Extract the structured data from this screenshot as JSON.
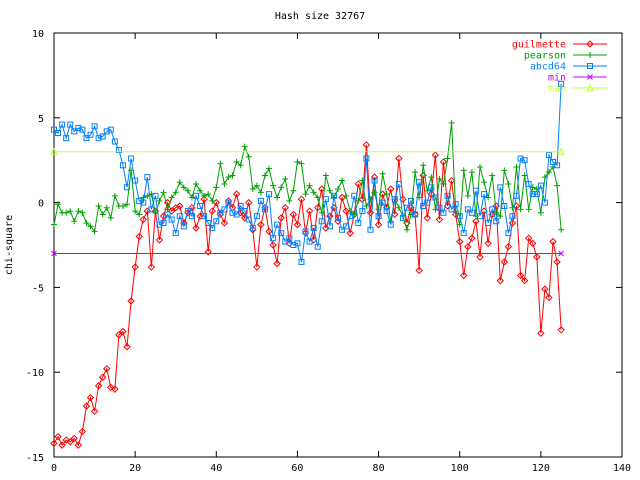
{
  "chart_data": {
    "type": "line",
    "title": "Hash size 32767",
    "xlabel": "",
    "ylabel": "chi-square",
    "xlim": [
      0,
      140
    ],
    "ylim": [
      -15,
      10
    ],
    "x_ticks": [
      0,
      20,
      40,
      60,
      80,
      100,
      120,
      140
    ],
    "y_ticks": [
      -15,
      -10,
      -5,
      0,
      5,
      10
    ],
    "grid": false,
    "legend_position": "top-right",
    "series": [
      {
        "name": "guilmette",
        "color": "#ff0000",
        "marker": "diamond",
        "x": [
          0,
          1,
          2,
          3,
          4,
          5,
          6,
          7,
          8,
          9,
          10,
          11,
          12,
          13,
          14,
          15,
          16,
          17,
          18,
          19,
          20,
          21,
          22,
          23,
          24,
          25,
          26,
          27,
          28,
          29,
          30,
          31,
          32,
          33,
          34,
          35,
          36,
          37,
          38,
          39,
          40,
          41,
          42,
          43,
          44,
          45,
          46,
          47,
          48,
          49,
          50,
          51,
          52,
          53,
          54,
          55,
          56,
          57,
          58,
          59,
          60,
          61,
          62,
          63,
          64,
          65,
          66,
          67,
          68,
          69,
          70,
          71,
          72,
          73,
          74,
          75,
          76,
          77,
          78,
          79,
          80,
          81,
          82,
          83,
          84,
          85,
          86,
          87,
          88,
          89,
          90,
          91,
          92,
          93,
          94,
          95,
          96,
          97,
          98,
          99,
          100,
          101,
          102,
          103,
          104,
          105,
          106,
          107,
          108,
          109,
          110,
          111,
          112,
          113,
          114,
          115,
          116,
          117,
          118,
          119,
          120,
          121,
          122,
          123,
          124,
          125
        ],
        "y": [
          -14.2,
          -13.8,
          -14.3,
          -14.0,
          -14.1,
          -13.9,
          -14.3,
          -13.5,
          -12.0,
          -11.5,
          -12.3,
          -10.8,
          -10.3,
          -9.8,
          -10.9,
          -11.0,
          -7.8,
          -7.6,
          -8.5,
          -5.8,
          -3.8,
          -2.0,
          -1.0,
          -0.5,
          -3.8,
          -0.5,
          -2.2,
          -0.8,
          0.0,
          -0.5,
          -0.3,
          -0.2,
          -1.2,
          -0.6,
          -0.3,
          -1.5,
          -0.8,
          0.2,
          -2.9,
          -0.5,
          0.0,
          -0.7,
          -1.2,
          0.1,
          -0.3,
          0.5,
          -0.6,
          -0.9,
          0.0,
          -1.6,
          -3.8,
          -1.3,
          -0.3,
          -1.7,
          -2.5,
          -3.6,
          -0.9,
          -0.3,
          -2.4,
          -0.7,
          -1.3,
          0.2,
          -1.8,
          -0.5,
          -2.2,
          -0.3,
          0.8,
          -1.5,
          -0.8,
          -0.3,
          -1.1,
          0.3,
          -0.5,
          -1.8,
          -0.7,
          1.1,
          0.2,
          3.4,
          -0.6,
          1.5,
          -1.3,
          0.5,
          -0.3,
          0.8,
          -0.7,
          2.6,
          0.2,
          -1.2,
          -0.3,
          -0.7,
          -4.0,
          1.6,
          -0.9,
          0.5,
          2.8,
          -1.0,
          2.4,
          -0.2,
          1.3,
          -0.7,
          -2.3,
          -4.3,
          -2.6,
          -2.1,
          -1.1,
          -3.2,
          -0.5,
          -2.4,
          -0.7,
          -0.2,
          -4.6,
          -3.5,
          -2.6,
          -1.2,
          -0.2,
          -4.3,
          -4.6,
          -2.1,
          -2.4,
          -3.2,
          -7.7,
          -5.1,
          -5.6,
          -2.3,
          -3.5,
          -7.5
        ]
      },
      {
        "name": "pearson",
        "color": "#00a000",
        "marker": "plus",
        "x": [
          0,
          1,
          2,
          3,
          4,
          5,
          6,
          7,
          8,
          9,
          10,
          11,
          12,
          13,
          14,
          15,
          16,
          17,
          18,
          19,
          20,
          21,
          22,
          23,
          24,
          25,
          26,
          27,
          28,
          29,
          30,
          31,
          32,
          33,
          34,
          35,
          36,
          37,
          38,
          39,
          40,
          41,
          42,
          43,
          44,
          45,
          46,
          47,
          48,
          49,
          50,
          51,
          52,
          53,
          54,
          55,
          56,
          57,
          58,
          59,
          60,
          61,
          62,
          63,
          64,
          65,
          66,
          67,
          68,
          69,
          70,
          71,
          72,
          73,
          74,
          75,
          76,
          77,
          78,
          79,
          80,
          81,
          82,
          83,
          84,
          85,
          86,
          87,
          88,
          89,
          90,
          91,
          92,
          93,
          94,
          95,
          96,
          97,
          98,
          99,
          100,
          101,
          102,
          103,
          104,
          105,
          106,
          107,
          108,
          109,
          110,
          111,
          112,
          113,
          114,
          115,
          116,
          117,
          118,
          119,
          120,
          121,
          122,
          123,
          124,
          125
        ],
        "y": [
          -1.3,
          -0.1,
          -0.6,
          -0.6,
          -0.5,
          -1.1,
          -0.5,
          -0.6,
          -1.2,
          -1.4,
          -1.7,
          -0.2,
          -0.7,
          -0.3,
          -0.9,
          0.4,
          -0.2,
          -0.2,
          -0.1,
          1.9,
          -0.5,
          -0.7,
          0.3,
          0.4,
          0.5,
          -0.6,
          0.1,
          0.6,
          -0.4,
          0.3,
          0.6,
          1.2,
          0.9,
          0.7,
          0.3,
          1.1,
          0.7,
          0.4,
          0.5,
          0.1,
          0.9,
          2.3,
          1.1,
          1.5,
          1.6,
          2.4,
          2.2,
          3.3,
          2.7,
          0.8,
          1.0,
          0.6,
          1.6,
          2.0,
          1.0,
          0.3,
          0.9,
          1.4,
          0.1,
          0.7,
          2.4,
          2.3,
          0.5,
          1.0,
          0.6,
          0.3,
          -0.6,
          1.6,
          0.7,
          0.3,
          0.8,
          1.3,
          0.4,
          -0.5,
          -0.7,
          0.1,
          1.3,
          -0.2,
          0.2,
          0.6,
          -0.4,
          1.7,
          0.5,
          -1.1,
          0.2,
          -0.3,
          -0.8,
          -1.6,
          -0.7,
          1.8,
          0.3,
          2.2,
          0.7,
          1.5,
          -0.4,
          1.4,
          1.1,
          2.6,
          4.7,
          -0.5,
          -1.3,
          1.9,
          0.4,
          1.8,
          -0.8,
          2.1,
          1.2,
          0.3,
          1.6,
          -0.6,
          -0.8,
          1.9,
          1.1,
          -0.3,
          2.1,
          -0.4,
          1.6,
          -0.4,
          0.9,
          0.8,
          -0.6,
          1.5,
          1.8,
          2.1,
          1.0,
          -1.6
        ]
      },
      {
        "name": "abcd64",
        "color": "#0080ff",
        "marker": "square",
        "x": [
          0,
          1,
          2,
          3,
          4,
          5,
          6,
          7,
          8,
          9,
          10,
          11,
          12,
          13,
          14,
          15,
          16,
          17,
          18,
          19,
          20,
          21,
          22,
          23,
          24,
          25,
          26,
          27,
          28,
          29,
          30,
          31,
          32,
          33,
          34,
          35,
          36,
          37,
          38,
          39,
          40,
          41,
          42,
          43,
          44,
          45,
          46,
          47,
          48,
          49,
          50,
          51,
          52,
          53,
          54,
          55,
          56,
          57,
          58,
          59,
          60,
          61,
          62,
          63,
          64,
          65,
          66,
          67,
          68,
          69,
          70,
          71,
          72,
          73,
          74,
          75,
          76,
          77,
          78,
          79,
          80,
          81,
          82,
          83,
          84,
          85,
          86,
          87,
          88,
          89,
          90,
          91,
          92,
          93,
          94,
          95,
          96,
          97,
          98,
          99,
          100,
          101,
          102,
          103,
          104,
          105,
          106,
          107,
          108,
          109,
          110,
          111,
          112,
          113,
          114,
          115,
          116,
          117,
          118,
          119,
          120,
          121,
          122,
          123,
          124,
          125
        ],
        "y": [
          4.3,
          4.1,
          4.6,
          3.8,
          4.6,
          4.2,
          4.4,
          4.3,
          3.8,
          4.0,
          4.5,
          3.8,
          3.9,
          4.2,
          4.3,
          3.6,
          3.1,
          2.2,
          0.9,
          2.6,
          1.3,
          0.1,
          0.0,
          1.5,
          -0.4,
          0.4,
          -1.3,
          -1.2,
          -0.7,
          -1.0,
          -1.8,
          -0.8,
          -1.4,
          -0.5,
          -0.8,
          0.4,
          -0.2,
          -0.8,
          -1.2,
          -1.5,
          -1.1,
          -0.6,
          -0.4,
          0.0,
          -0.6,
          -0.7,
          -0.2,
          -0.5,
          -1.0,
          -1.5,
          -0.8,
          0.1,
          -0.4,
          0.5,
          -2.1,
          -1.3,
          -1.8,
          -2.3,
          -2.1,
          -2.5,
          -2.4,
          -3.5,
          -1.7,
          -2.3,
          -1.5,
          -2.6,
          -1.1,
          0.2,
          -1.4,
          0.4,
          -0.9,
          -1.6,
          -1.4,
          -0.8,
          0.4,
          -1.2,
          -0.5,
          2.6,
          -1.6,
          1.3,
          -0.8,
          0.0,
          -0.5,
          -1.3,
          0.2,
          1.1,
          -0.9,
          -0.3,
          0.1,
          -0.7,
          1.2,
          -0.2,
          0.0,
          0.9,
          0.3,
          -0.3,
          -0.6,
          0.4,
          -0.4,
          -0.1,
          -0.8,
          -1.8,
          -0.4,
          -0.6,
          0.7,
          -0.8,
          0.5,
          -1.2,
          -0.4,
          -1.1,
          0.9,
          -0.2,
          -1.8,
          -0.8,
          0.4,
          2.6,
          2.5,
          1.1,
          0.5,
          0.5,
          1.0,
          0.0,
          2.8,
          2.4,
          2.2,
          7.0
        ]
      },
      {
        "name": "min",
        "color": "#c000ff",
        "marker": "x",
        "x": [
          0,
          125
        ],
        "y": [
          -3.0,
          -3.0
        ]
      },
      {
        "name": "max",
        "color": "#c0ff40",
        "marker": "triangle",
        "x": [
          0,
          125
        ],
        "y": [
          3.0,
          3.0
        ]
      }
    ]
  }
}
